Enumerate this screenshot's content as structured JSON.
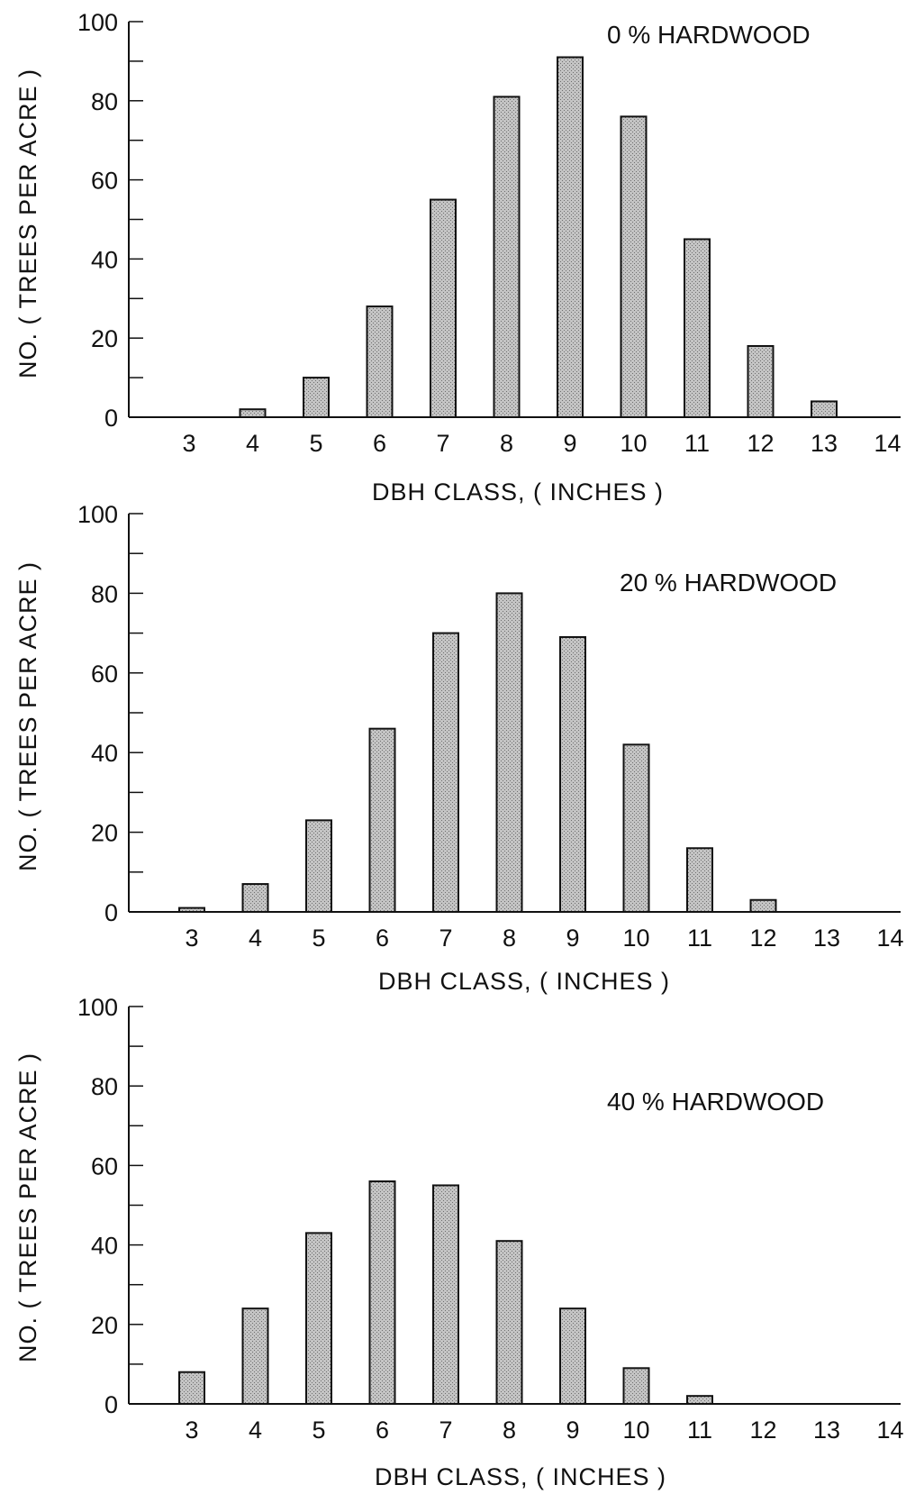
{
  "chart_data": [
    {
      "type": "bar",
      "title": "0 % HARDWOOD",
      "xlabel": "DBH CLASS, ( INCHES )",
      "ylabel": "NO. ( TREES PER ACRE )",
      "categories": [
        "3",
        "4",
        "5",
        "6",
        "7",
        "8",
        "9",
        "10",
        "11",
        "12",
        "13",
        "14"
      ],
      "values": [
        0,
        2,
        10,
        28,
        55,
        81,
        91,
        76,
        45,
        18,
        4,
        0
      ],
      "ylim": [
        0,
        100
      ],
      "yticks": [
        "0",
        "20",
        "40",
        "60",
        "80",
        "100"
      ],
      "grid": false,
      "bar_color": "#b8b8b8"
    },
    {
      "type": "bar",
      "title": "20 % HARDWOOD",
      "xlabel": "DBH CLASS, ( INCHES )",
      "ylabel": "NO. ( TREES PER ACRE )",
      "categories": [
        "3",
        "4",
        "5",
        "6",
        "7",
        "8",
        "9",
        "10",
        "11",
        "12",
        "13",
        "14"
      ],
      "values": [
        1,
        7,
        23,
        46,
        70,
        80,
        69,
        42,
        16,
        3,
        0,
        0
      ],
      "ylim": [
        0,
        100
      ],
      "yticks": [
        "0",
        "20",
        "40",
        "60",
        "80",
        "100"
      ],
      "grid": false,
      "bar_color": "#b8b8b8"
    },
    {
      "type": "bar",
      "title": "40 % HARDWOOD",
      "xlabel": "DBH CLASS, ( INCHES )",
      "ylabel": "NO. ( TREES PER ACRE )",
      "categories": [
        "3",
        "4",
        "5",
        "6",
        "7",
        "8",
        "9",
        "10",
        "11",
        "12",
        "13",
        "14"
      ],
      "values": [
        8,
        24,
        43,
        56,
        55,
        41,
        24,
        9,
        2,
        0,
        0,
        0
      ],
      "ylim": [
        0,
        100
      ],
      "yticks": [
        "0",
        "20",
        "40",
        "60",
        "80",
        "100"
      ],
      "grid": false,
      "bar_color": "#b8b8b8"
    }
  ]
}
